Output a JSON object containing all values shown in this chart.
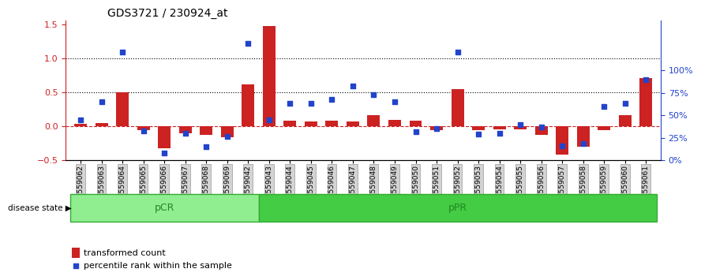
{
  "title": "GDS3721 / 230924_at",
  "samples": [
    "GSM559062",
    "GSM559063",
    "GSM559064",
    "GSM559065",
    "GSM559066",
    "GSM559067",
    "GSM559068",
    "GSM559069",
    "GSM559042",
    "GSM559043",
    "GSM559044",
    "GSM559045",
    "GSM559046",
    "GSM559047",
    "GSM559048",
    "GSM559049",
    "GSM559050",
    "GSM559051",
    "GSM559052",
    "GSM559053",
    "GSM559054",
    "GSM559055",
    "GSM559056",
    "GSM559057",
    "GSM559058",
    "GSM559059",
    "GSM559060",
    "GSM559061"
  ],
  "transformed_count": [
    0.04,
    0.05,
    0.5,
    -0.05,
    -0.32,
    -0.1,
    -0.12,
    -0.16,
    0.62,
    1.47,
    0.08,
    0.07,
    0.08,
    0.07,
    0.17,
    0.1,
    0.08,
    -0.05,
    0.55,
    -0.05,
    -0.04,
    -0.04,
    -0.12,
    -0.42,
    -0.3,
    -0.05,
    0.17,
    0.71
  ],
  "percentile_rank": [
    45,
    65,
    120,
    33,
    8,
    30,
    15,
    27,
    130,
    45,
    63,
    63,
    68,
    83,
    73,
    65,
    32,
    35,
    120,
    29,
    30,
    40,
    37,
    16,
    19,
    60,
    63,
    90
  ],
  "pCR_count": 9,
  "pPR_count": 19,
  "ylim_left": [
    -0.5,
    1.55
  ],
  "ylim_right": [
    0,
    155
  ],
  "yticks_left": [
    -0.5,
    0.0,
    0.5,
    1.0,
    1.5
  ],
  "yticks_right": [
    0,
    25,
    50,
    75,
    100
  ],
  "ytick_labels_right": [
    "0%",
    "25%",
    "50%",
    "75%",
    "100%"
  ],
  "hlines_dotted": [
    0.5,
    1.0
  ],
  "bar_color": "#cc2222",
  "marker_color": "#2244cc",
  "pCR_color": "#90ee90",
  "pPR_color": "#44cc44",
  "group_label_color": "#228822",
  "zero_line_color": "#cc2222",
  "dot_line_color": "black",
  "background_color": "#ffffff",
  "bar_width": 0.6
}
